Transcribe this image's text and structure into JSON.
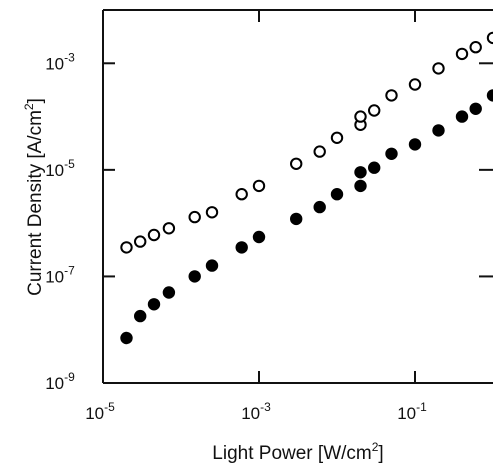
{
  "chart_data": {
    "type": "scatter",
    "title": "",
    "xlabel": "Light Power [W/cm2]",
    "ylabel": "Current Density [A/cm2]",
    "xscale": "log",
    "yscale": "log",
    "xlim": [
      1e-05,
      1
    ],
    "ylim": [
      1e-09,
      0.01
    ],
    "grid": false,
    "legend": "none",
    "x_ticks": [
      {
        "value": 1e-05,
        "base": "10",
        "exp": "-5"
      },
      {
        "value": 0.001,
        "base": "10",
        "exp": "-3"
      },
      {
        "value": 0.1,
        "base": "10",
        "exp": "-1"
      }
    ],
    "y_ticks": [
      {
        "value": 1e-09,
        "base": "10",
        "exp": "-9"
      },
      {
        "value": 1e-07,
        "base": "10",
        "exp": "-7"
      },
      {
        "value": 1e-05,
        "base": "10",
        "exp": "-5"
      },
      {
        "value": 0.001,
        "base": "10",
        "exp": "-3"
      }
    ],
    "series": [
      {
        "marker": "open-circle",
        "points": [
          {
            "x": 2e-05,
            "y": 3.5e-07
          },
          {
            "x": 3e-05,
            "y": 4.5e-07
          },
          {
            "x": 4.5e-05,
            "y": 6e-07
          },
          {
            "x": 7e-05,
            "y": 8e-07
          },
          {
            "x": 0.00015,
            "y": 1.3e-06
          },
          {
            "x": 0.00025,
            "y": 1.6e-06
          },
          {
            "x": 0.0006,
            "y": 3.5e-06
          },
          {
            "x": 0.001,
            "y": 5e-06
          },
          {
            "x": 0.003,
            "y": 1.3e-05
          },
          {
            "x": 0.006,
            "y": 2.2e-05
          },
          {
            "x": 0.01,
            "y": 4e-05
          },
          {
            "x": 0.02,
            "y": 7e-05
          },
          {
            "x": 0.02,
            "y": 0.0001
          },
          {
            "x": 0.03,
            "y": 0.00013
          },
          {
            "x": 0.05,
            "y": 0.00025
          },
          {
            "x": 0.1,
            "y": 0.0004
          },
          {
            "x": 0.2,
            "y": 0.0008
          },
          {
            "x": 0.4,
            "y": 0.0015
          },
          {
            "x": 0.6,
            "y": 0.002
          },
          {
            "x": 1,
            "y": 0.003
          }
        ]
      },
      {
        "marker": "filled-circle",
        "points": [
          {
            "x": 2e-05,
            "y": 7e-09
          },
          {
            "x": 3e-05,
            "y": 1.8e-08
          },
          {
            "x": 4.5e-05,
            "y": 3e-08
          },
          {
            "x": 7e-05,
            "y": 5e-08
          },
          {
            "x": 0.00015,
            "y": 1e-07
          },
          {
            "x": 0.00025,
            "y": 1.6e-07
          },
          {
            "x": 0.0006,
            "y": 3.5e-07
          },
          {
            "x": 0.001,
            "y": 5.5e-07
          },
          {
            "x": 0.003,
            "y": 1.2e-06
          },
          {
            "x": 0.006,
            "y": 2e-06
          },
          {
            "x": 0.01,
            "y": 3.5e-06
          },
          {
            "x": 0.02,
            "y": 5e-06
          },
          {
            "x": 0.02,
            "y": 9e-06
          },
          {
            "x": 0.03,
            "y": 1.1e-05
          },
          {
            "x": 0.05,
            "y": 2e-05
          },
          {
            "x": 0.1,
            "y": 3e-05
          },
          {
            "x": 0.2,
            "y": 5.5e-05
          },
          {
            "x": 0.4,
            "y": 0.0001
          },
          {
            "x": 0.6,
            "y": 0.00014
          },
          {
            "x": 1,
            "y": 0.00025
          }
        ]
      }
    ]
  }
}
